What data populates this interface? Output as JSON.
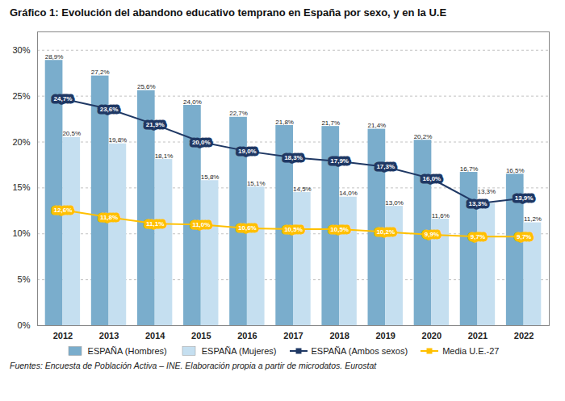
{
  "chart_data": {
    "type": "bar",
    "title": "Gráfico 1: Evolución del abandono educativo temprano en España por sexo, y en la U.E",
    "categories": [
      "2012",
      "2013",
      "2014",
      "2015",
      "2016",
      "2017",
      "2018",
      "2019",
      "2020",
      "2021",
      "2022"
    ],
    "series": [
      {
        "name": "ESPAÑA (Hombres)",
        "type": "bar",
        "color": "#7aadcc",
        "values": [
          28.9,
          27.2,
          25.6,
          24.0,
          22.7,
          21.8,
          21.7,
          21.4,
          20.2,
          16.7,
          16.5
        ],
        "value_labels": [
          "28,9%",
          "27,2%",
          "25,6%",
          "24,0%",
          "22,7%",
          "21,8%",
          "21,7%",
          "21,4%",
          "20,2%",
          "16,7%",
          "16,5%"
        ]
      },
      {
        "name": "ESPAÑA (Mujeres)",
        "type": "bar",
        "color": "#c5dff0",
        "values": [
          20.5,
          19.8,
          18.1,
          15.8,
          15.1,
          14.5,
          14.0,
          13.0,
          11.6,
          13.3,
          11.2
        ],
        "value_labels": [
          "20,5%",
          "19,8%",
          "18,1%",
          "15,8%",
          "15,1%",
          "14,5%",
          "14,0%",
          "13,0%",
          "11,6%",
          "13,3%",
          "11,2%"
        ]
      },
      {
        "name": "ESPAÑA (Ambos sexos)",
        "type": "line",
        "marker": "square",
        "color": "#1f3864",
        "values": [
          24.7,
          23.6,
          21.9,
          20.0,
          19.0,
          18.3,
          17.9,
          17.3,
          16.0,
          13.3,
          13.9
        ],
        "value_labels": [
          "24,7%",
          "23,6%",
          "21,9%",
          "20,0%",
          "19,0%",
          "18,3%",
          "17,9%",
          "17,3%",
          "16,0%",
          "13,3%",
          "13,9%"
        ]
      },
      {
        "name": "Media U.E.-27",
        "type": "line",
        "marker": "square",
        "color": "#ffc000",
        "values": [
          12.6,
          11.8,
          11.1,
          11.0,
          10.6,
          10.5,
          10.5,
          10.2,
          9.9,
          9.7,
          9.7
        ],
        "value_labels": [
          "12,6%",
          "11,8%",
          "11,1%",
          "11,0%",
          "10,6%",
          "10,5%",
          "10,5%",
          "10,2%",
          "9,9%",
          "9,7%",
          "9,7%"
        ]
      }
    ],
    "ylim": [
      0,
      32
    ],
    "yticks": [
      {
        "value": 0,
        "label": "0%"
      },
      {
        "value": 5,
        "label": "5%"
      },
      {
        "value": 10,
        "label": "10%"
      },
      {
        "value": 15,
        "label": "15%"
      },
      {
        "value": 20,
        "label": "20%"
      },
      {
        "value": 25,
        "label": "25%"
      },
      {
        "value": 30,
        "label": "30%"
      }
    ],
    "grid": true,
    "legend": "bottom",
    "data_labels": true,
    "annotations": [
      "Fuentes: Encuesta de Población Activa – INE. Elaboración propia a partir de microdatos. Eurostat"
    ]
  }
}
